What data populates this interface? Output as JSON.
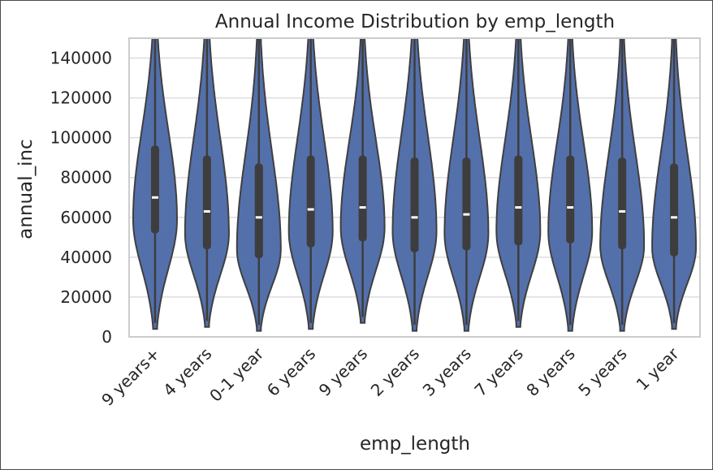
{
  "chart_data": {
    "type": "violin",
    "title": "Annual Income Distribution by emp_length",
    "xlabel": "emp_length",
    "ylabel": "annual_inc",
    "ylim": [
      0,
      150000
    ],
    "yticks": [
      0,
      20000,
      40000,
      60000,
      80000,
      100000,
      120000,
      140000
    ],
    "ytick_labels": [
      "0",
      "20000",
      "40000",
      "60000",
      "80000",
      "100000",
      "120000",
      "140000"
    ],
    "grid": true,
    "color": "#5470ab",
    "inner_color": "#3d3d3d",
    "categories": [
      "9 years+",
      "4 years",
      "0-1 year",
      "6 years",
      "9 years",
      "2 years",
      "3 years",
      "7 years",
      "8 years",
      "5 years",
      "1 year"
    ],
    "medians": [
      70000,
      63000,
      60000,
      64000,
      65000,
      60000,
      61500,
      65000,
      65000,
      63000,
      60000
    ],
    "q1": [
      52000,
      44000,
      39500,
      45000,
      48000,
      42500,
      43500,
      46000,
      47000,
      44000,
      40500
    ],
    "q3": [
      96000,
      91000,
      87000,
      91000,
      91000,
      90000,
      90000,
      91000,
      91000,
      90000,
      87000
    ],
    "whisker_low": [
      7000,
      8000,
      6000,
      7000,
      10000,
      6000,
      6000,
      8000,
      6000,
      6000,
      7000
    ],
    "mode": [
      59000,
      52000,
      44000,
      53000,
      55000,
      53000,
      52000,
      53000,
      53000,
      46000,
      45000
    ]
  }
}
